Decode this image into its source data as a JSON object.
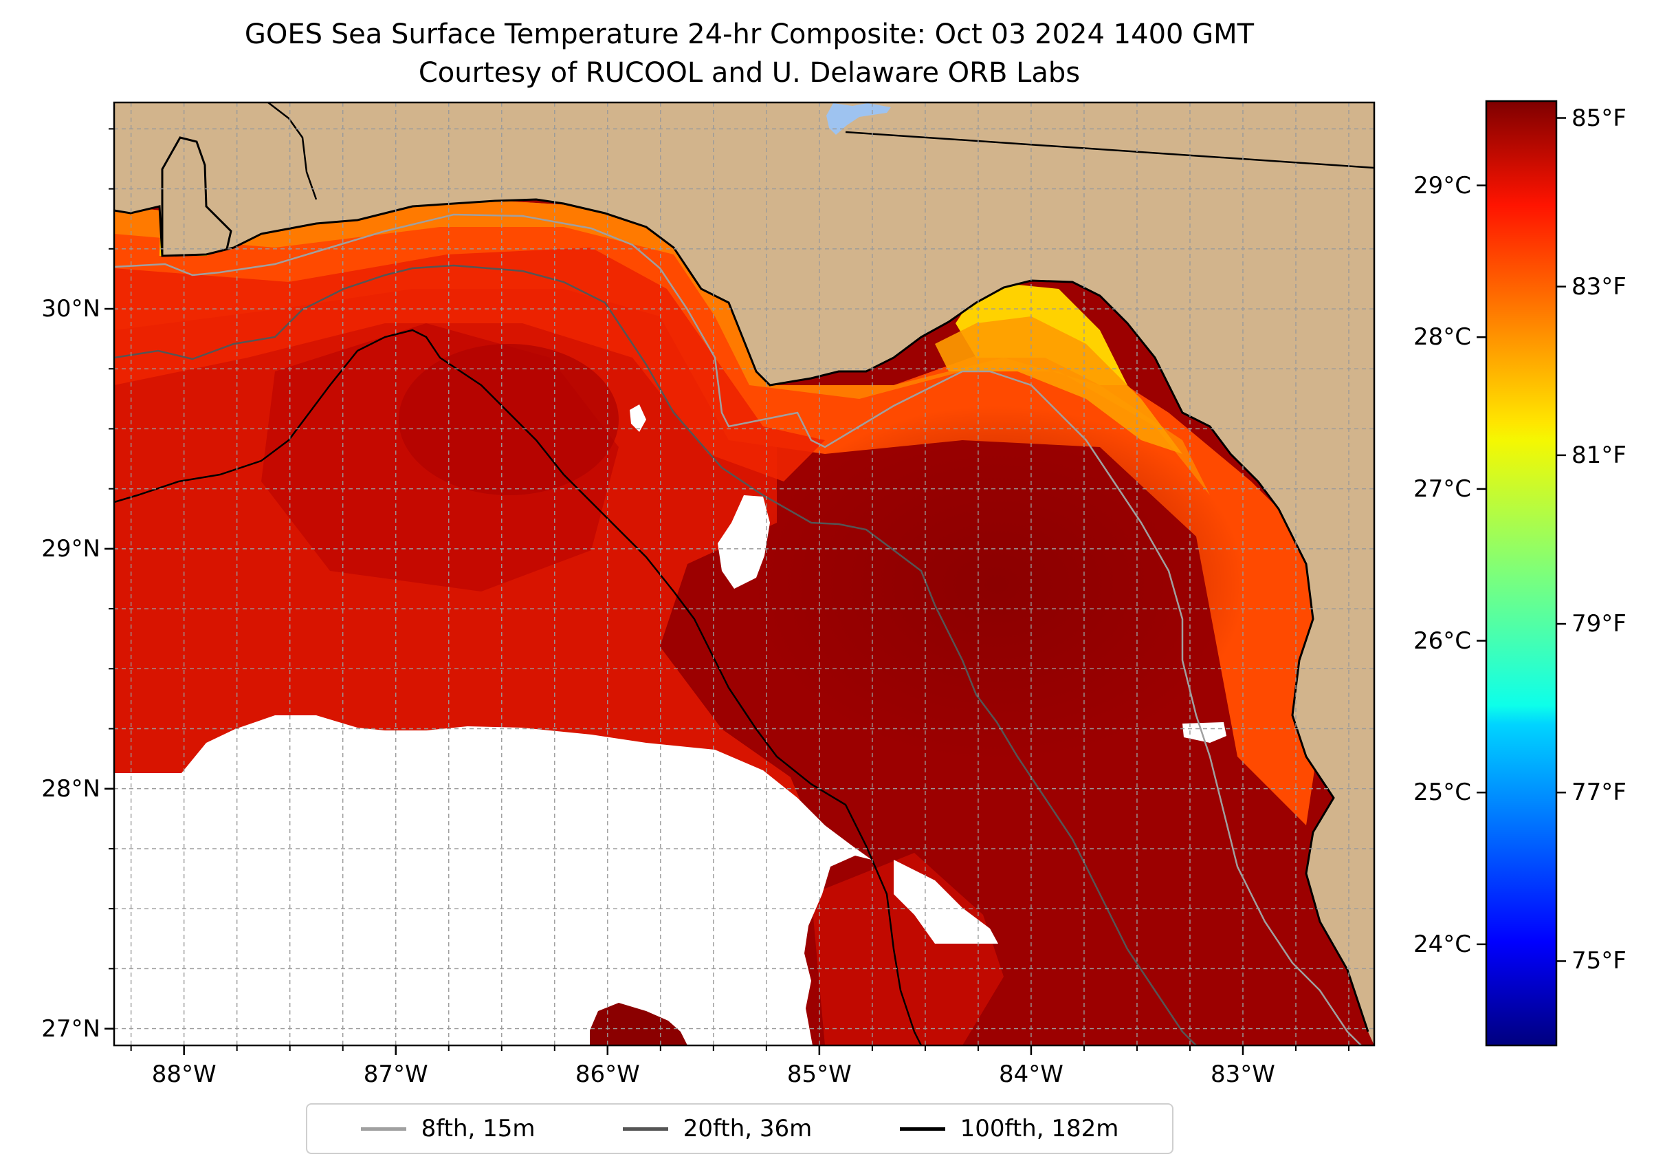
{
  "title": "GOES Sea Surface Temperature 24-hr Composite: Oct 03 2024 1400 GMT",
  "subtitle": "Courtesy of RUCOOL and U. Delaware ORB Labs",
  "map": {
    "lon_range": [
      -88.33,
      -82.38
    ],
    "lat_range": [
      26.93,
      30.86
    ],
    "lon_ticks": [
      {
        "value": -88,
        "label": "88°W"
      },
      {
        "value": -87,
        "label": "87°W"
      },
      {
        "value": -86,
        "label": "86°W"
      },
      {
        "value": -85,
        "label": "85°W"
      },
      {
        "value": -84,
        "label": "84°W"
      },
      {
        "value": -83,
        "label": "83°W"
      }
    ],
    "lat_ticks": [
      {
        "value": 27,
        "label": "27°N"
      },
      {
        "value": 28,
        "label": "28°N"
      },
      {
        "value": 29,
        "label": "29°N"
      },
      {
        "value": 30,
        "label": "30°N"
      }
    ],
    "land_color": "#d2b48c",
    "no_data_color": "#ffffff",
    "gridlines": true
  },
  "colorbar": {
    "fahrenheit_range": [
      74,
      85.2
    ],
    "fahrenheit_ticks": [
      {
        "value": 75,
        "label": "75°F"
      },
      {
        "value": 77,
        "label": "77°F"
      },
      {
        "value": 79,
        "label": "79°F"
      },
      {
        "value": 81,
        "label": "81°F"
      },
      {
        "value": 83,
        "label": "83°F"
      },
      {
        "value": 85,
        "label": "85°F"
      }
    ],
    "celsius_ticks": [
      {
        "value": 24,
        "label": "24°C"
      },
      {
        "value": 25,
        "label": "25°C"
      },
      {
        "value": 26,
        "label": "26°C"
      },
      {
        "value": 27,
        "label": "27°C"
      },
      {
        "value": 28,
        "label": "28°C"
      },
      {
        "value": 29,
        "label": "29°C"
      }
    ],
    "colormap": "jet"
  },
  "legend": {
    "placement": "bottom-center",
    "items": [
      {
        "label": "8fth, 15m",
        "color": "#a0a0a0"
      },
      {
        "label": "20fth, 36m",
        "color": "#555555"
      },
      {
        "label": "100fth, 182m",
        "color": "#000000"
      }
    ]
  }
}
